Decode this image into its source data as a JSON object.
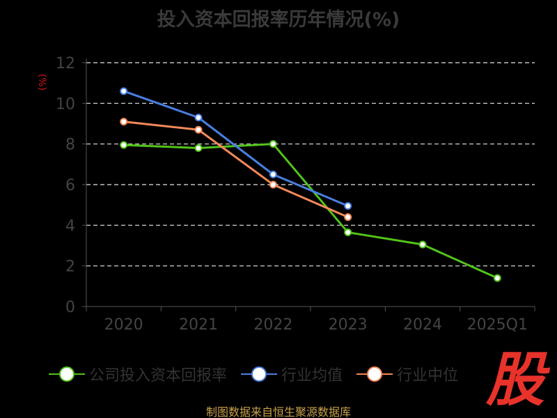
{
  "chart_data": {
    "type": "line",
    "title": "投入资本回报率历年情况(%)",
    "ylabel": "(%)",
    "xlabel": "",
    "categories": [
      "2020",
      "2021",
      "2022",
      "2023",
      "2024",
      "2025Q1"
    ],
    "ylim": [
      0,
      12
    ],
    "yticks": [
      0,
      2,
      4,
      6,
      8,
      10,
      12
    ],
    "grid": true,
    "legend_position": "bottom",
    "series": [
      {
        "name": "公司投入资本回报率",
        "color": "#52c41a",
        "values": [
          7.95,
          7.8,
          8.0,
          3.65,
          3.05,
          1.4
        ]
      },
      {
        "name": "行业均值",
        "color": "#4a7fe0",
        "values": [
          10.6,
          9.3,
          6.5,
          4.95,
          null,
          null
        ]
      },
      {
        "name": "行业中位",
        "color": "#f5895a",
        "values": [
          9.1,
          8.7,
          6.0,
          4.4,
          null,
          null
        ]
      }
    ]
  },
  "footer": {
    "source": "制图数据来自恒生聚源数据库"
  },
  "logo": {
    "text": "股"
  }
}
